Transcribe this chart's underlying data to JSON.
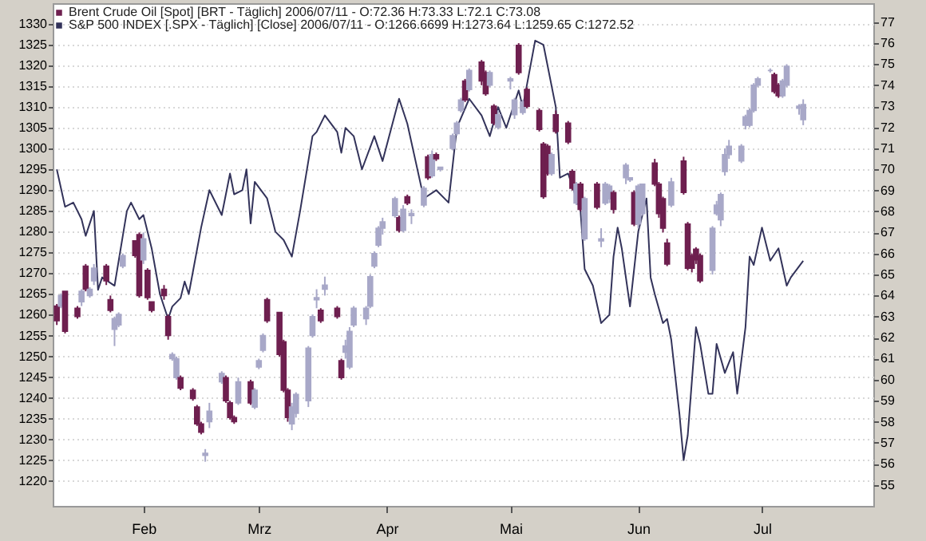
{
  "chart_data": {
    "type": "candlestick",
    "xlim": [
      "2006-01-10",
      "2006-07-28"
    ],
    "xticks": [
      {
        "value": "2006-02-01",
        "label": "Feb"
      },
      {
        "value": "2006-03-01",
        "label": "Mrz"
      },
      {
        "value": "2006-04-01",
        "label": "Apr"
      },
      {
        "value": "2006-05-01",
        "label": "Mai"
      },
      {
        "value": "2006-06-01",
        "label": "Jun"
      },
      {
        "value": "2006-07-01",
        "label": "Jul"
      }
    ],
    "ylim": [
      1214,
      1335
    ],
    "yticks": [
      1220,
      1225,
      1230,
      1235,
      1240,
      1245,
      1250,
      1255,
      1260,
      1265,
      1270,
      1275,
      1280,
      1285,
      1290,
      1295,
      1300,
      1305,
      1310,
      1315,
      1320,
      1325,
      1330
    ],
    "y2lim": [
      54,
      77.9
    ],
    "y2ticks": [
      55,
      56,
      57,
      58,
      59,
      60,
      61,
      62,
      63,
      64,
      65,
      66,
      67,
      68,
      69,
      70,
      71,
      72,
      73,
      74,
      75,
      76,
      77
    ],
    "grid": "y",
    "legend": "top left",
    "series": [
      {
        "type": "line",
        "name": "S&P 500 INDEX [.SPX - Täglich] [Close] 2006/07/11 - O:1266.6699 H:1273.64 L:1259.65 C:1272.52",
        "color": "#33335a",
        "x": [
          "2006-01-11",
          "2006-01-13",
          "2006-01-15",
          "2006-01-17",
          "2006-01-18",
          "2006-01-20",
          "2006-01-21",
          "2006-01-22",
          "2006-01-25",
          "2006-01-28",
          "2006-01-29",
          "2006-01-31",
          "2006-02-01",
          "2006-02-02",
          "2006-02-03",
          "2006-02-05",
          "2006-02-07",
          "2006-02-08",
          "2006-02-10",
          "2006-02-11",
          "2006-02-12",
          "2006-02-15",
          "2006-02-17",
          "2006-02-20",
          "2006-02-22",
          "2006-02-23",
          "2006-02-25",
          "2006-02-26",
          "2006-02-27",
          "2006-02-28",
          "2006-03-03",
          "2006-03-05",
          "2006-03-07",
          "2006-03-09",
          "2006-03-11",
          "2006-03-13",
          "2006-03-14",
          "2006-03-15",
          "2006-03-17",
          "2006-03-20",
          "2006-03-21",
          "2006-03-22",
          "2006-03-24",
          "2006-03-26",
          "2006-03-29",
          "2006-03-31",
          "2006-04-04",
          "2006-04-06",
          "2006-04-08",
          "2006-04-10",
          "2006-04-13",
          "2006-04-16",
          "2006-04-18",
          "2006-04-21",
          "2006-04-24",
          "2006-04-26",
          "2006-04-28",
          "2006-04-30",
          "2006-05-03",
          "2006-05-04",
          "2006-05-07",
          "2006-05-09",
          "2006-05-12",
          "2006-05-13",
          "2006-05-15",
          "2006-05-18",
          "2006-05-19",
          "2006-05-21",
          "2006-05-23",
          "2006-05-25",
          "2006-05-26",
          "2006-05-27",
          "2006-05-28",
          "2006-05-30",
          "2006-06-01",
          "2006-06-03",
          "2006-06-04",
          "2006-06-05",
          "2006-06-07",
          "2006-06-08",
          "2006-06-09",
          "2006-06-11",
          "2006-06-12",
          "2006-06-13",
          "2006-06-15",
          "2006-06-16",
          "2006-06-18",
          "2006-06-19",
          "2006-06-20",
          "2006-06-22",
          "2006-06-24",
          "2006-06-25",
          "2006-06-27",
          "2006-06-28",
          "2006-06-29",
          "2006-07-01",
          "2006-07-03",
          "2006-07-05",
          "2006-07-07",
          "2006-07-08",
          "2006-07-11"
        ],
        "values": [
          1295,
          1286,
          1287,
          1283,
          1279,
          1285,
          1266,
          1269,
          1267,
          1285,
          1287,
          1283,
          1284,
          1280,
          1276,
          1265,
          1259,
          1262,
          1264,
          1268,
          1265,
          1281,
          1290,
          1284,
          1294,
          1289,
          1290,
          1295,
          1282,
          1292,
          1288,
          1280,
          1278,
          1274,
          1285,
          1297,
          1303,
          1304,
          1308,
          1304,
          1299,
          1305,
          1303,
          1295,
          1303,
          1297,
          1312,
          1306,
          1297,
          1288,
          1290,
          1287,
          1305,
          1312,
          1308,
          1303,
          1310,
          1305,
          1314,
          1310,
          1326,
          1325,
          1310,
          1293,
          1294,
          1285,
          1271,
          1267,
          1258,
          1260,
          1274,
          1281,
          1276,
          1262,
          1280,
          1288,
          1269,
          1265,
          1258,
          1259,
          1254,
          1236,
          1225,
          1231,
          1257,
          1253,
          1241,
          1241,
          1253,
          1246,
          1251,
          1241,
          1257,
          1274,
          1272,
          1281,
          1273,
          1276,
          1267,
          1269,
          1273
        ]
      },
      {
        "axis": "y2",
        "name": "Brent Crude Oil [Spot] [BRT - Täglich] 2006/07/11 - O:72.36 H:73.33 L:72.1 C:73.08",
        "color": "#6e1f4f",
        "x": [
          "2006-01-11",
          "2006-01-12",
          "2006-01-13",
          "2006-01-16",
          "2006-01-17",
          "2006-01-18",
          "2006-01-19",
          "2006-01-20",
          "2006-01-23",
          "2006-01-24",
          "2006-01-25",
          "2006-01-26",
          "2006-01-27",
          "2006-01-30",
          "2006-01-31",
          "2006-02-01",
          "2006-02-02",
          "2006-02-03",
          "2006-02-06",
          "2006-02-07",
          "2006-02-08",
          "2006-02-09",
          "2006-02-10",
          "2006-02-13",
          "2006-02-14",
          "2006-02-15",
          "2006-02-16",
          "2006-02-17",
          "2006-02-20",
          "2006-02-21",
          "2006-02-22",
          "2006-02-23",
          "2006-02-24",
          "2006-02-27",
          "2006-02-28",
          "2006-03-01",
          "2006-03-02",
          "2006-03-03",
          "2006-03-06",
          "2006-03-07",
          "2006-03-08",
          "2006-03-09",
          "2006-03-10",
          "2006-03-13",
          "2006-03-14",
          "2006-03-15",
          "2006-03-16",
          "2006-03-17",
          "2006-03-20",
          "2006-03-21",
          "2006-03-22",
          "2006-03-23",
          "2006-03-24",
          "2006-03-27",
          "2006-03-28",
          "2006-03-29",
          "2006-03-30",
          "2006-03-31",
          "2006-04-03",
          "2006-04-04",
          "2006-04-05",
          "2006-04-06",
          "2006-04-07",
          "2006-04-10",
          "2006-04-11",
          "2006-04-12",
          "2006-04-13",
          "2006-04-14",
          "2006-04-17",
          "2006-04-18",
          "2006-04-19",
          "2006-04-20",
          "2006-04-21",
          "2006-04-24",
          "2006-04-25",
          "2006-04-26",
          "2006-04-27",
          "2006-04-28",
          "2006-05-01",
          "2006-05-02",
          "2006-05-03",
          "2006-05-04",
          "2006-05-05",
          "2006-05-08",
          "2006-05-09",
          "2006-05-10",
          "2006-05-11",
          "2006-05-12",
          "2006-05-15",
          "2006-05-16",
          "2006-05-17",
          "2006-05-18",
          "2006-05-19",
          "2006-05-22",
          "2006-05-23",
          "2006-05-24",
          "2006-05-25",
          "2006-05-26",
          "2006-05-29",
          "2006-05-30",
          "2006-05-31",
          "2006-06-01",
          "2006-06-02",
          "2006-06-05",
          "2006-06-06",
          "2006-06-07",
          "2006-06-08",
          "2006-06-09",
          "2006-06-12",
          "2006-06-13",
          "2006-06-14",
          "2006-06-15",
          "2006-06-16",
          "2006-06-19",
          "2006-06-20",
          "2006-06-21",
          "2006-06-22",
          "2006-06-23",
          "2006-06-26",
          "2006-06-27",
          "2006-06-28",
          "2006-06-29",
          "2006-06-30",
          "2006-07-03",
          "2006-07-04",
          "2006-07-05",
          "2006-07-06",
          "2006-07-07",
          "2006-07-10",
          "2006-07-11"
        ],
        "ohlc": [
          [
            63.5,
            63.6,
            62.6,
            62.8
          ],
          [
            63.5,
            64.1,
            63.4,
            64.0
          ],
          [
            64.2,
            64.2,
            62.2,
            62.3
          ],
          [
            63.4,
            63.5,
            62.9,
            63.0
          ],
          [
            63.7,
            64.3,
            63.5,
            64.2
          ],
          [
            65.4,
            65.5,
            64.2,
            64.3
          ],
          [
            64.0,
            64.4,
            63.9,
            64.3
          ],
          [
            64.7,
            65.5,
            64.5,
            65.3
          ],
          [
            65.4,
            65.5,
            64.5,
            64.7
          ],
          [
            63.8,
            64.0,
            63.2,
            63.3
          ],
          [
            62.4,
            63.0,
            61.6,
            62.9
          ],
          [
            62.6,
            63.2,
            62.5,
            63.1
          ],
          [
            65.4,
            66.0,
            65.3,
            65.9
          ],
          [
            66.6,
            66.6,
            65.8,
            65.9
          ],
          [
            66.9,
            67.0,
            63.9,
            64.0
          ],
          [
            65.7,
            67.0,
            65.5,
            66.7
          ],
          [
            65.2,
            65.3,
            63.8,
            63.9
          ],
          [
            63.7,
            63.7,
            63.2,
            63.3
          ],
          [
            64.3,
            64.5,
            63.8,
            64.0
          ],
          [
            63.0,
            63.1,
            61.9,
            62.1
          ],
          [
            61.0,
            61.3,
            60.9,
            61.2
          ],
          [
            60.1,
            61.1,
            60.0,
            61.0
          ],
          [
            60.1,
            60.2,
            59.5,
            59.6
          ],
          [
            59.5,
            59.6,
            59.0,
            59.1
          ],
          [
            58.7,
            58.8,
            57.8,
            57.9
          ],
          [
            57.9,
            58.0,
            57.4,
            57.5
          ],
          [
            56.4,
            56.7,
            56.1,
            56.5
          ],
          [
            58.0,
            58.9,
            57.7,
            58.5
          ],
          [
            59.9,
            60.4,
            59.8,
            60.3
          ],
          [
            60.1,
            60.2,
            58.9,
            59.0
          ],
          [
            58.9,
            59.0,
            58.1,
            58.2
          ],
          [
            58.2,
            58.3,
            57.9,
            58.0
          ],
          [
            58.9,
            60.1,
            58.8,
            59.9
          ],
          [
            59.9,
            60.0,
            58.8,
            58.9
          ],
          [
            58.7,
            59.6,
            58.6,
            59.5
          ],
          [
            60.6,
            61.0,
            60.5,
            60.9
          ],
          [
            61.4,
            62.2,
            61.3,
            62.1
          ],
          [
            63.8,
            63.9,
            62.7,
            62.8
          ],
          [
            63.2,
            63.2,
            61.1,
            61.2
          ],
          [
            61.8,
            61.9,
            59.4,
            59.5
          ],
          [
            59.5,
            59.6,
            58.0,
            58.2
          ],
          [
            57.9,
            58.9,
            57.6,
            58.7
          ],
          [
            58.4,
            59.4,
            58.2,
            59.3
          ],
          [
            59.0,
            61.6,
            58.7,
            61.5
          ],
          [
            62.1,
            63.1,
            62.0,
            63.0
          ],
          [
            63.8,
            64.3,
            63.4,
            63.9
          ],
          [
            63.3,
            63.4,
            62.7,
            62.8
          ],
          [
            64.3,
            64.9,
            64.0,
            64.5
          ],
          [
            63.4,
            63.5,
            62.9,
            63.0
          ],
          [
            60.9,
            61.0,
            60.0,
            60.1
          ],
          [
            61.3,
            61.9,
            61.0,
            61.6
          ],
          [
            60.6,
            62.5,
            60.5,
            62.3
          ],
          [
            62.6,
            63.5,
            62.5,
            63.4
          ],
          [
            62.9,
            63.5,
            62.6,
            63.4
          ],
          [
            63.5,
            65.0,
            63.4,
            64.9
          ],
          [
            65.4,
            66.1,
            65.3,
            66.0
          ],
          [
            66.4,
            67.3,
            66.3,
            67.2
          ],
          [
            67.2,
            67.7,
            66.9,
            67.5
          ],
          [
            67.8,
            68.7,
            67.7,
            68.6
          ],
          [
            67.7,
            67.8,
            67.0,
            67.1
          ],
          [
            67.1,
            68.3,
            67.0,
            68.1
          ],
          [
            68.7,
            68.8,
            68.3,
            68.4
          ],
          [
            67.8,
            68.1,
            67.4,
            67.9
          ],
          [
            68.3,
            69.2,
            68.2,
            69.1
          ],
          [
            70.6,
            70.7,
            69.5,
            69.6
          ],
          [
            69.7,
            70.9,
            69.6,
            70.7
          ],
          [
            70.7,
            70.8,
            70.4,
            70.5
          ],
          [
            70.0,
            70.1,
            69.9,
            70.1
          ],
          [
            71.0,
            71.7,
            70.9,
            71.6
          ],
          [
            71.7,
            72.3,
            71.6,
            72.2
          ],
          [
            72.8,
            73.4,
            72.7,
            73.3
          ],
          [
            74.2,
            74.3,
            73.2,
            73.3
          ],
          [
            73.8,
            74.8,
            73.7,
            74.7
          ],
          [
            75.1,
            75.2,
            74.0,
            74.2
          ],
          [
            74.6,
            74.7,
            73.5,
            73.6
          ],
          [
            74.0,
            74.7,
            73.9,
            74.6
          ],
          [
            73.0,
            73.1,
            72.1,
            72.2
          ],
          [
            72.0,
            72.8,
            71.9,
            72.6
          ],
          [
            74.2,
            74.4,
            73.8,
            74.3
          ],
          [
            72.6,
            73.4,
            72.4,
            73.3
          ],
          [
            75.9,
            76.0,
            74.5,
            74.6
          ],
          [
            72.7,
            73.3,
            72.6,
            73.2
          ],
          [
            73.8,
            73.9,
            72.9,
            73.0
          ],
          [
            72.8,
            72.9,
            71.8,
            71.9
          ],
          [
            71.2,
            71.3,
            68.6,
            68.7
          ],
          [
            71.1,
            71.2,
            69.7,
            69.8
          ],
          [
            69.8,
            70.8,
            69.7,
            70.7
          ],
          [
            72.6,
            72.8,
            71.7,
            71.8
          ],
          [
            72.2,
            72.3,
            71.2,
            71.3
          ],
          [
            69.9,
            70.0,
            69.0,
            69.1
          ],
          [
            68.4,
            69.4,
            68.3,
            69.3
          ],
          [
            69.3,
            69.4,
            68.0,
            68.1
          ],
          [
            66.7,
            68.7,
            66.6,
            68.6
          ],
          [
            69.3,
            69.4,
            68.1,
            68.2
          ],
          [
            66.6,
            67.2,
            66.3,
            66.7
          ],
          [
            68.4,
            69.4,
            68.3,
            69.3
          ],
          [
            68.6,
            69.3,
            68.4,
            69.2
          ],
          [
            68.9,
            69.0,
            67.9,
            68.1
          ],
          [
            69.6,
            70.3,
            69.3,
            70.2
          ],
          [
            69.5,
            69.6,
            69.4,
            69.6
          ],
          [
            68.9,
            69.0,
            67.3,
            67.4
          ],
          [
            67.4,
            69.3,
            67.2,
            69.2
          ],
          [
            67.9,
            69.3,
            67.8,
            69.3
          ],
          [
            70.3,
            70.5,
            69.2,
            69.3
          ],
          [
            69.3,
            69.4,
            67.7,
            67.9
          ],
          [
            68.6,
            68.7,
            67.0,
            67.2
          ],
          [
            66.5,
            66.7,
            65.4,
            65.5
          ],
          [
            68.3,
            69.6,
            68.2,
            69.4
          ],
          [
            70.4,
            70.6,
            68.8,
            68.9
          ],
          [
            67.4,
            67.5,
            65.2,
            65.3
          ],
          [
            65.9,
            66.0,
            65.1,
            65.3
          ],
          [
            66.2,
            66.3,
            65.5,
            65.7
          ],
          [
            65.9,
            66.0,
            64.6,
            64.7
          ],
          [
            65.2,
            67.3,
            65.0,
            67.2
          ],
          [
            67.9,
            68.5,
            67.8,
            68.3
          ],
          [
            67.6,
            68.9,
            67.3,
            68.8
          ],
          [
            69.9,
            71.0,
            69.7,
            70.7
          ],
          [
            70.7,
            71.4,
            70.5,
            71.1
          ],
          [
            70.4,
            71.2,
            70.3,
            71.1
          ],
          [
            72.1,
            72.6,
            71.9,
            72.5
          ],
          [
            72.1,
            72.9,
            72.0,
            72.8
          ],
          [
            72.8,
            74.1,
            72.7,
            74.0
          ],
          [
            74.0,
            74.4,
            73.9,
            74.3
          ],
          [
            74.7,
            74.8,
            74.6,
            74.7
          ],
          [
            74.5,
            74.6,
            73.6,
            73.7
          ],
          [
            74.0,
            74.1,
            73.4,
            73.5
          ],
          [
            73.5,
            74.3,
            73.4,
            74.2
          ],
          [
            74.0,
            75.0,
            73.9,
            74.9
          ],
          [
            72.9,
            73.1,
            72.6,
            73.0
          ],
          [
            72.36,
            73.33,
            72.1,
            73.08
          ]
        ],
        "colors": [
          "#6e1f4f",
          "#a8a8c8",
          "#6e1f4f",
          "#6e1f4f",
          "#a8a8c8",
          "#6e1f4f",
          "#a8a8c8",
          "#a8a8c8",
          "#6e1f4f",
          "#6e1f4f",
          "#a8a8c8",
          "#a8a8c8",
          "#a8a8c8",
          "#6e1f4f",
          "#6e1f4f",
          "#a8a8c8",
          "#6e1f4f",
          "#6e1f4f",
          "#6e1f4f",
          "#6e1f4f",
          "#a8a8c8",
          "#a8a8c8",
          "#6e1f4f",
          "#6e1f4f",
          "#6e1f4f",
          "#6e1f4f",
          "#a8a8c8",
          "#a8a8c8",
          "#a8a8c8",
          "#6e1f4f",
          "#6e1f4f",
          "#6e1f4f",
          "#a8a8c8",
          "#6e1f4f",
          "#a8a8c8",
          "#a8a8c8",
          "#a8a8c8",
          "#6e1f4f",
          "#6e1f4f",
          "#6e1f4f",
          "#6e1f4f",
          "#a8a8c8",
          "#a8a8c8",
          "#a8a8c8",
          "#a8a8c8",
          "#a8a8c8",
          "#6e1f4f",
          "#a8a8c8",
          "#6e1f4f",
          "#6e1f4f",
          "#a8a8c8",
          "#a8a8c8",
          "#a8a8c8",
          "#a8a8c8",
          "#a8a8c8",
          "#a8a8c8",
          "#a8a8c8",
          "#a8a8c8",
          "#a8a8c8",
          "#6e1f4f",
          "#a8a8c8",
          "#6e1f4f",
          "#a8a8c8",
          "#a8a8c8",
          "#6e1f4f",
          "#a8a8c8",
          "#6e1f4f",
          "#a8a8c8",
          "#a8a8c8",
          "#a8a8c8",
          "#a8a8c8",
          "#6e1f4f",
          "#a8a8c8",
          "#6e1f4f",
          "#6e1f4f",
          "#a8a8c8",
          "#6e1f4f",
          "#a8a8c8",
          "#a8a8c8",
          "#a8a8c8",
          "#6e1f4f",
          "#a8a8c8",
          "#6e1f4f",
          "#6e1f4f",
          "#6e1f4f",
          "#6e1f4f",
          "#a8a8c8",
          "#6e1f4f",
          "#6e1f4f",
          "#6e1f4f",
          "#a8a8c8",
          "#6e1f4f",
          "#a8a8c8",
          "#6e1f4f",
          "#a8a8c8",
          "#a8a8c8",
          "#a8a8c8",
          "#6e1f4f",
          "#a8a8c8",
          "#a8a8c8",
          "#6e1f4f",
          "#a8a8c8",
          "#a8a8c8",
          "#6e1f4f",
          "#6e1f4f",
          "#6e1f4f",
          "#6e1f4f",
          "#a8a8c8",
          "#6e1f4f",
          "#6e1f4f",
          "#6e1f4f",
          "#6e1f4f",
          "#6e1f4f",
          "#a8a8c8",
          "#a8a8c8",
          "#a8a8c8",
          "#a8a8c8",
          "#a8a8c8",
          "#a8a8c8",
          "#a8a8c8",
          "#a8a8c8",
          "#a8a8c8",
          "#a8a8c8",
          "#a8a8c8",
          "#6e1f4f",
          "#6e1f4f",
          "#a8a8c8",
          "#a8a8c8",
          "#a8a8c8",
          "#a8a8c8"
        ]
      }
    ]
  }
}
